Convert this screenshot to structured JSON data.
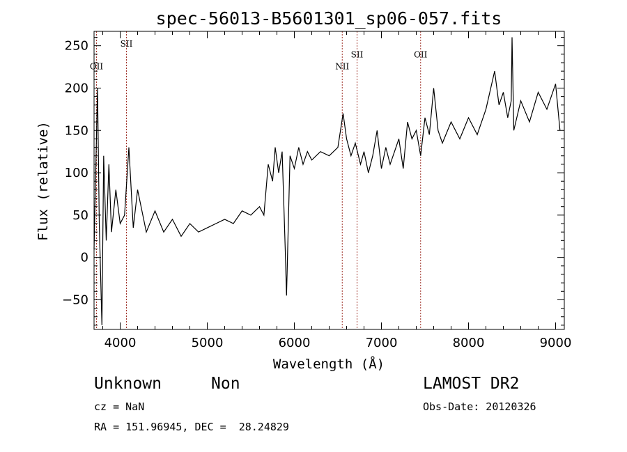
{
  "chart_data": {
    "type": "line",
    "title": "spec-56013-B5601301_sp06-057.fits",
    "xlabel": "Wavelength (Å)",
    "ylabel": "Flux (relative)",
    "xlim": [
      3700,
      9100
    ],
    "ylim": [
      -85,
      267
    ],
    "x_ticks": [
      4000,
      5000,
      6000,
      7000,
      8000,
      9000
    ],
    "y_ticks": [
      -50,
      0,
      50,
      100,
      150,
      200,
      250
    ],
    "grid": false,
    "series": [
      {
        "color": "#000000",
        "x": [
          3700,
          3740,
          3760,
          3790,
          3810,
          3840,
          3870,
          3900,
          3950,
          4000,
          4050,
          4100,
          4150,
          4200,
          4300,
          4400,
          4500,
          4600,
          4700,
          4800,
          4900,
          5000,
          5100,
          5200,
          5300,
          5400,
          5500,
          5600,
          5650,
          5700,
          5750,
          5780,
          5820,
          5860,
          5880,
          5895,
          5910,
          5950,
          6000,
          6050,
          6100,
          6150,
          6200,
          6300,
          6400,
          6500,
          6560,
          6600,
          6650,
          6700,
          6760,
          6800,
          6850,
          6900,
          6950,
          7000,
          7050,
          7100,
          7150,
          7200,
          7250,
          7300,
          7350,
          7400,
          7450,
          7500,
          7550,
          7600,
          7650,
          7700,
          7800,
          7900,
          8000,
          8100,
          8200,
          8300,
          8350,
          8400,
          8450,
          8490,
          8500,
          8520,
          8600,
          8700,
          8800,
          8900,
          9000,
          9050
        ],
        "y": [
          10,
          200,
          40,
          -80,
          120,
          20,
          110,
          30,
          80,
          40,
          50,
          130,
          35,
          80,
          30,
          55,
          30,
          45,
          25,
          40,
          30,
          35,
          40,
          45,
          40,
          55,
          50,
          60,
          50,
          110,
          90,
          130,
          100,
          125,
          60,
          10,
          -45,
          120,
          105,
          130,
          110,
          125,
          115,
          125,
          120,
          130,
          170,
          140,
          120,
          135,
          110,
          125,
          100,
          120,
          150,
          105,
          130,
          110,
          125,
          140,
          105,
          160,
          140,
          150,
          120,
          165,
          145,
          200,
          150,
          135,
          160,
          140,
          165,
          145,
          175,
          220,
          180,
          195,
          165,
          185,
          260,
          150,
          185,
          160,
          195,
          175,
          205,
          150
        ]
      }
    ],
    "line_markers": [
      {
        "label": "OII",
        "x": 3728,
        "label_y": 222
      },
      {
        "label": "SII",
        "x": 4072,
        "label_y": 249
      },
      {
        "label": "NII",
        "x": 6550,
        "label_y": 222
      },
      {
        "label": "SII",
        "x": 6720,
        "label_y": 236
      },
      {
        "label": "OII",
        "x": 7450,
        "label_y": 236
      }
    ],
    "marker_color": "#a0332a"
  },
  "footer": {
    "object_type": "Unknown",
    "object_subtype": "Non",
    "survey": "LAMOST DR2",
    "redshift": "cz = NaN",
    "obs_date": "Obs-Date: 20120326",
    "coordinates": "RA = 151.96945, DEC =  28.24829"
  }
}
